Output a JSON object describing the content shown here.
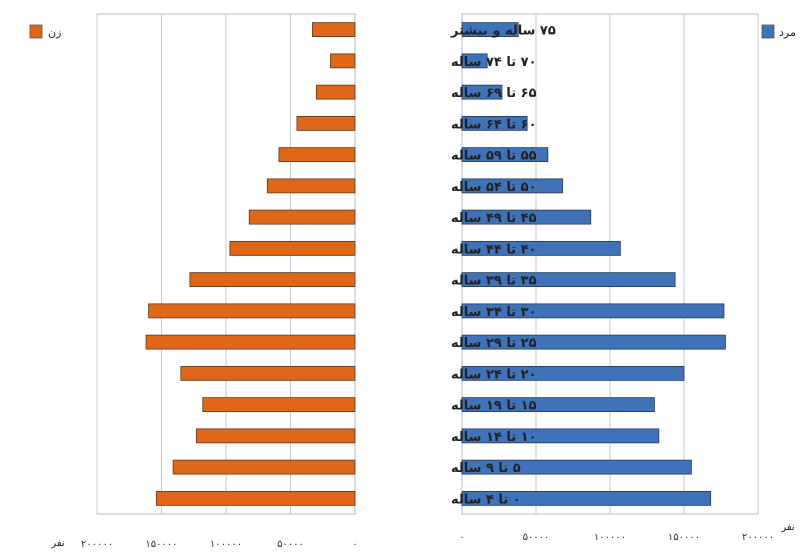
{
  "chart_data": {
    "type": "bar",
    "orientation": "horizontal",
    "layout": "population-pyramid",
    "categories": [
      "۷۵ ساله و بیشتر",
      "۷۰ تا ۷۴ ساله",
      "۶۵ تا ۶۹ ساله",
      "۶۰ تا ۶۴ ساله",
      "۵۵ تا ۵۹ ساله",
      "۵۰ تا ۵۴ ساله",
      "۴۵ تا ۴۹ ساله",
      "۴۰ تا ۴۴ ساله",
      "۳۵ تا ۳۹ ساله",
      "۳۰ تا ۳۴ ساله",
      "۲۵ تا ۲۹ ساله",
      "۲۰ تا ۲۴ ساله",
      "۱۵ تا ۱۹ ساله",
      "۱۰ تا ۱۴ ساله",
      "۵ تا ۹ ساله",
      "۰ تا ۴ ساله"
    ],
    "series": [
      {
        "name": "زن",
        "color": "#e0661a",
        "side": "left",
        "values": [
          33000,
          19000,
          30000,
          45000,
          59000,
          68000,
          82000,
          97000,
          128000,
          160000,
          162000,
          135000,
          118000,
          123000,
          141000,
          154000
        ]
      },
      {
        "name": "مرد",
        "color": "#3f72b8",
        "side": "right",
        "values": [
          38000,
          17000,
          27000,
          44000,
          58000,
          68000,
          87000,
          107000,
          144000,
          177000,
          178000,
          150000,
          130000,
          133000,
          155000,
          168000
        ]
      }
    ],
    "left_axis": {
      "ticks": [
        200000,
        150000,
        100000,
        50000,
        0
      ],
      "tick_labels": [
        "۲۰۰۰۰۰",
        "۱۵۰۰۰۰",
        "۱۰۰۰۰۰",
        "۵۰۰۰۰",
        "۰"
      ],
      "unit": "نفر",
      "range": [
        0,
        200000
      ]
    },
    "right_axis": {
      "ticks": [
        0,
        50000,
        100000,
        150000,
        200000
      ],
      "tick_labels": [
        "۰",
        "۵۰۰۰۰",
        "۱۰۰۰۰۰",
        "۱۵۰۰۰۰",
        "۲۰۰۰۰۰"
      ],
      "unit": "نفر",
      "range": [
        0,
        200000
      ]
    },
    "grid": true,
    "legend": {
      "women": {
        "label": "زن",
        "color": "#e0661a",
        "placement": "top-left"
      },
      "men": {
        "label": "مرد",
        "color": "#3f72b8",
        "placement": "top-right"
      }
    }
  }
}
